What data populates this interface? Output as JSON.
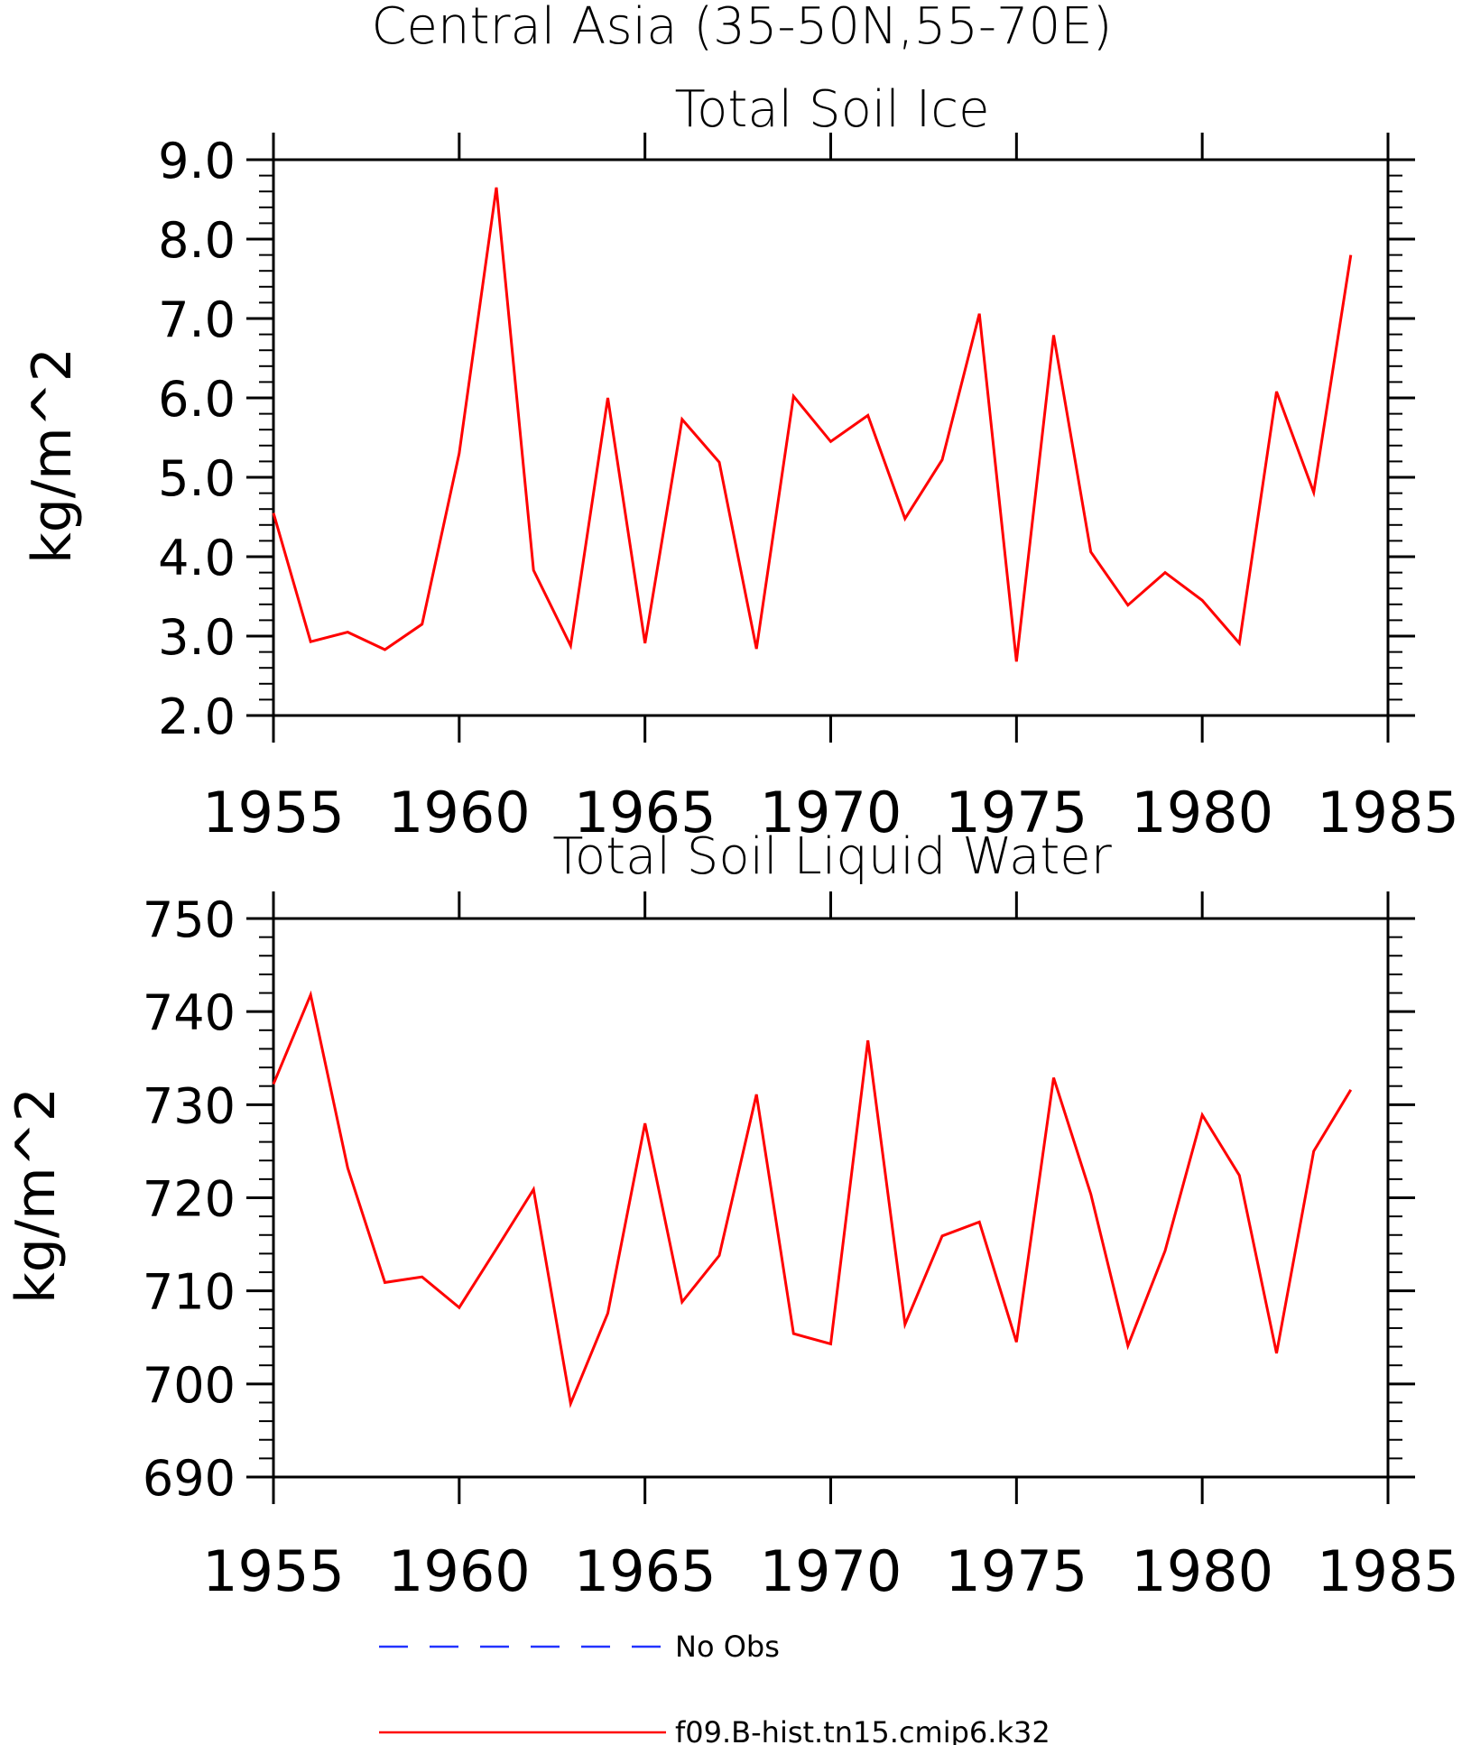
{
  "figure_title": "Central Asia (35-50N,55-70E)",
  "legend": [
    {
      "label": "No Obs",
      "color": "#2233ff",
      "style": "dashed"
    },
    {
      "label": "f09.B-hist.tn15.cmip6.k32",
      "color": "#ff0000",
      "style": "solid"
    }
  ],
  "chart_data": [
    {
      "type": "line",
      "title": "Total Soil Ice",
      "ylabel": "kg/m^2",
      "xlabel": "",
      "xlim": [
        1955,
        1985
      ],
      "ylim": [
        2.0,
        9.0
      ],
      "xticks": [
        "1955",
        "1960",
        "1965",
        "1970",
        "1975",
        "1980",
        "1985"
      ],
      "yticks": [
        "2.0",
        "3.0",
        "4.0",
        "5.0",
        "6.0",
        "7.0",
        "8.0",
        "9.0"
      ],
      "grid": false,
      "series": [
        {
          "name": "f09.B-hist.tn15.cmip6.k32",
          "color": "#ff0000",
          "x": [
            1955,
            1956,
            1957,
            1958,
            1959,
            1960,
            1961,
            1962,
            1963,
            1964,
            1965,
            1966,
            1967,
            1968,
            1969,
            1970,
            1971,
            1972,
            1973,
            1974,
            1975,
            1976,
            1977,
            1978,
            1979,
            1980,
            1981,
            1982,
            1983,
            1984
          ],
          "values": [
            4.55,
            2.93,
            3.05,
            2.83,
            3.15,
            5.3,
            8.65,
            3.83,
            2.88,
            6.0,
            2.91,
            5.73,
            5.19,
            2.84,
            6.02,
            5.45,
            5.78,
            4.48,
            5.22,
            7.06,
            2.68,
            6.79,
            4.06,
            3.39,
            3.8,
            3.45,
            2.91,
            6.08,
            4.81,
            7.8
          ]
        }
      ]
    },
    {
      "type": "line",
      "title": "Total Soil Liquid Water",
      "ylabel": "kg/m^2",
      "xlabel": "",
      "xlim": [
        1955,
        1985
      ],
      "ylim": [
        690,
        750
      ],
      "xticks": [
        "1955",
        "1960",
        "1965",
        "1970",
        "1975",
        "1980",
        "1985"
      ],
      "yticks": [
        "690",
        "700",
        "710",
        "720",
        "730",
        "740",
        "750"
      ],
      "grid": false,
      "series": [
        {
          "name": "f09.B-hist.tn15.cmip6.k32",
          "color": "#ff0000",
          "x": [
            1955,
            1956,
            1957,
            1958,
            1959,
            1960,
            1961,
            1962,
            1963,
            1964,
            1965,
            1966,
            1967,
            1968,
            1969,
            1970,
            1971,
            1972,
            1973,
            1974,
            1975,
            1976,
            1977,
            1978,
            1979,
            1980,
            1981,
            1982,
            1983,
            1984
          ],
          "values": [
            732.2,
            741.8,
            723.2,
            710.9,
            711.5,
            708.2,
            714.5,
            720.9,
            697.9,
            707.6,
            728.0,
            708.8,
            713.8,
            731.1,
            705.4,
            704.3,
            736.9,
            706.4,
            715.9,
            717.4,
            704.5,
            732.9,
            720.4,
            704.1,
            714.3,
            728.9,
            722.4,
            703.3,
            725.0,
            731.6
          ]
        }
      ]
    }
  ]
}
